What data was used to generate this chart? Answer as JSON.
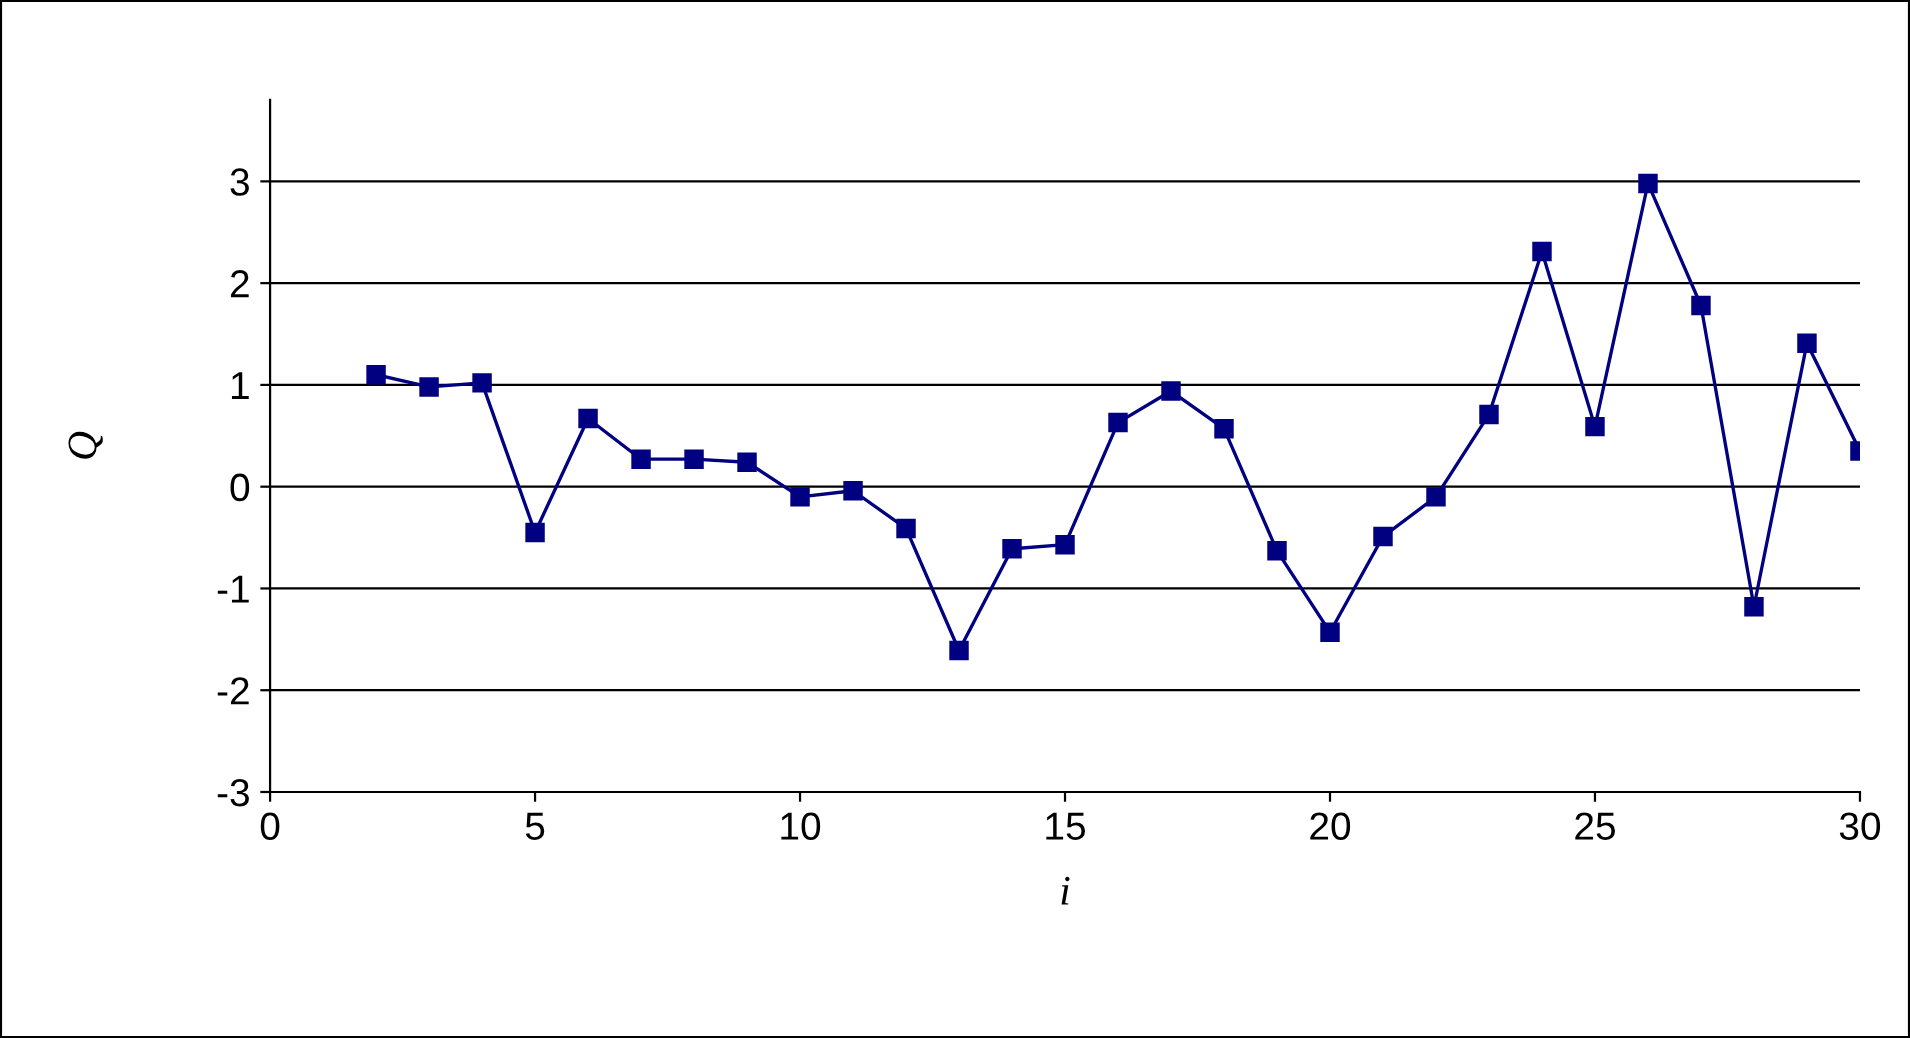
{
  "chart_data": {
    "type": "line",
    "xlabel": "i",
    "ylabel": "Q",
    "x": [
      2,
      3,
      4,
      5,
      6,
      7,
      8,
      9,
      10,
      11,
      12,
      13,
      14,
      15,
      16,
      17,
      18,
      19,
      20,
      21,
      22,
      23,
      24,
      25,
      26,
      27,
      28,
      29,
      30
    ],
    "series": [
      {
        "color": "#000080",
        "values": [
          1.1,
          0.98,
          1.02,
          -0.45,
          0.67,
          0.27,
          0.27,
          0.24,
          -0.1,
          -0.04,
          -0.41,
          -1.61,
          -0.61,
          -0.57,
          0.63,
          0.94,
          0.57,
          -0.63,
          -1.43,
          -0.49,
          -0.1,
          0.71,
          2.31,
          0.59,
          2.98,
          1.78,
          -1.18,
          1.41,
          0.35
        ]
      }
    ],
    "xlim": [
      0,
      30
    ],
    "xticks": [
      0,
      5,
      10,
      15,
      20,
      25,
      30
    ],
    "ylim": [
      -3,
      3.8
    ],
    "yticks": [
      -3,
      -2,
      -1,
      0,
      1,
      2,
      3
    ],
    "grid": "y",
    "marker": "square",
    "line_style": "solid",
    "legend": false
  }
}
